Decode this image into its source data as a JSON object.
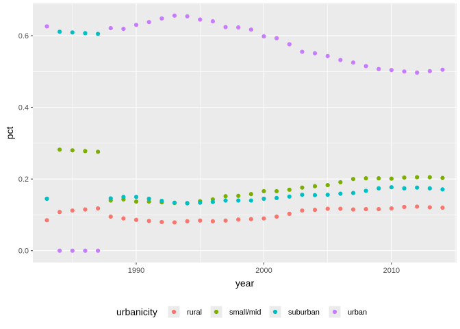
{
  "chart_data": {
    "type": "scatter",
    "xlabel": "year",
    "ylabel": "pct",
    "xlim": [
      1981.9,
      2015.1
    ],
    "ylim": [
      -0.033,
      0.69
    ],
    "xticks": [
      1990,
      2000,
      2010
    ],
    "yticks": [
      0.0,
      0.2,
      0.4,
      0.6
    ],
    "xtick_labels": [
      "1990",
      "2000",
      "2010"
    ],
    "ytick_labels": [
      "0.0",
      "0.2",
      "0.4",
      "0.6"
    ],
    "grid": true,
    "legend_position": "bottom",
    "legend_title": "urbanicity",
    "series": [
      {
        "name": "rural",
        "color": "#F8766D",
        "x": [
          1983,
          1984,
          1985,
          1986,
          1987,
          1988,
          1989,
          1990,
          1991,
          1992,
          1993,
          1994,
          1995,
          1996,
          1997,
          1998,
          1999,
          2000,
          2001,
          2002,
          2003,
          2004,
          2005,
          2006,
          2007,
          2008,
          2009,
          2010,
          2011,
          2012,
          2013,
          2014
        ],
        "y": [
          0.085,
          0.108,
          0.112,
          0.115,
          0.118,
          0.095,
          0.09,
          0.086,
          0.083,
          0.08,
          0.079,
          0.082,
          0.084,
          0.082,
          0.084,
          0.087,
          0.088,
          0.09,
          0.095,
          0.103,
          0.112,
          0.114,
          0.117,
          0.117,
          0.115,
          0.116,
          0.116,
          0.118,
          0.122,
          0.123,
          0.121,
          0.12
        ]
      },
      {
        "name": "small/mid",
        "color": "#7CAE00",
        "x": [
          1983,
          1984,
          1985,
          1986,
          1987,
          1988,
          1989,
          1990,
          1991,
          1992,
          1993,
          1994,
          1995,
          1996,
          1997,
          1998,
          1999,
          2000,
          2001,
          2002,
          2003,
          2004,
          2005,
          2006,
          2007,
          2008,
          2009,
          2010,
          2011,
          2012,
          2013,
          2014
        ],
        "y": [
          0.145,
          0.282,
          0.28,
          0.278,
          0.276,
          0.14,
          0.143,
          0.137,
          0.137,
          0.135,
          0.133,
          0.133,
          0.138,
          0.143,
          0.152,
          0.153,
          0.158,
          0.166,
          0.166,
          0.17,
          0.176,
          0.18,
          0.183,
          0.191,
          0.2,
          0.202,
          0.202,
          0.201,
          0.204,
          0.205,
          0.205,
          0.203
        ]
      },
      {
        "name": "suburban",
        "color": "#00BFC4",
        "x": [
          1983,
          1984,
          1985,
          1986,
          1987,
          1988,
          1989,
          1990,
          1991,
          1992,
          1993,
          1994,
          1995,
          1996,
          1997,
          1998,
          1999,
          2000,
          2001,
          2002,
          2003,
          2004,
          2005,
          2006,
          2007,
          2008,
          2009,
          2010,
          2011,
          2012,
          2013,
          2014
        ],
        "y": [
          0.145,
          0.611,
          0.609,
          0.607,
          0.605,
          0.146,
          0.15,
          0.15,
          0.145,
          0.139,
          0.134,
          0.132,
          0.134,
          0.136,
          0.14,
          0.14,
          0.14,
          0.145,
          0.147,
          0.151,
          0.156,
          0.155,
          0.156,
          0.159,
          0.161,
          0.167,
          0.174,
          0.177,
          0.174,
          0.176,
          0.174,
          0.171
        ]
      },
      {
        "name": "urban",
        "color": "#C77CFF",
        "x": [
          1983,
          1984,
          1985,
          1986,
          1987,
          1988,
          1989,
          1990,
          1991,
          1992,
          1993,
          1994,
          1995,
          1996,
          1997,
          1998,
          1999,
          2000,
          2001,
          2002,
          2003,
          2004,
          2005,
          2006,
          2007,
          2008,
          2009,
          2010,
          2011,
          2012,
          2013,
          2014
        ],
        "y": [
          0.626,
          0.0,
          0.0,
          0.0,
          0.0,
          0.621,
          0.619,
          0.63,
          0.638,
          0.648,
          0.656,
          0.654,
          0.645,
          0.64,
          0.624,
          0.623,
          0.617,
          0.598,
          0.593,
          0.576,
          0.555,
          0.551,
          0.543,
          0.532,
          0.525,
          0.515,
          0.507,
          0.504,
          0.5,
          0.497,
          0.501,
          0.505
        ]
      }
    ]
  }
}
